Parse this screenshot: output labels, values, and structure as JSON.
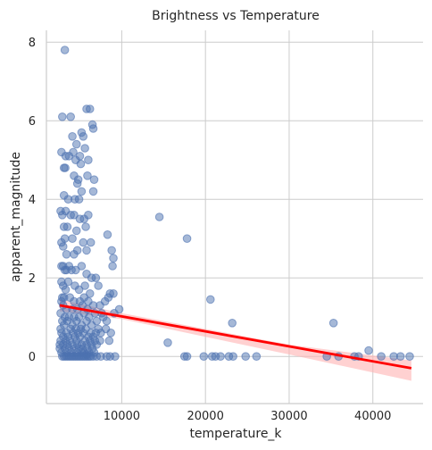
{
  "chart_data": {
    "type": "scatter",
    "title": "Brightness vs Temperature",
    "xlabel": "temperature_k",
    "ylabel": "apparent_magnitude",
    "xlim": [
      1000,
      46000
    ],
    "ylim": [
      -1.2,
      8.3
    ],
    "xticks": [
      10000,
      20000,
      30000,
      40000
    ],
    "xtick_labels": [
      "10000",
      "20000",
      "30000",
      "40000"
    ],
    "yticks": [
      0,
      2,
      4,
      6,
      8
    ],
    "ytick_labels": [
      "0",
      "2",
      "4",
      "6",
      "8"
    ],
    "grid": true,
    "legend": "none",
    "colors": {
      "points": "#4c72b0",
      "regression": "#ff0000",
      "band": "#ffb3b3"
    },
    "series": [
      {
        "kind": "points",
        "points": [
          [
            3200,
            7.8
          ],
          [
            2900,
            6.1
          ],
          [
            3900,
            6.1
          ],
          [
            5800,
            6.3
          ],
          [
            6200,
            6.3
          ],
          [
            6500,
            5.9
          ],
          [
            6600,
            5.8
          ],
          [
            4100,
            5.6
          ],
          [
            4600,
            5.4
          ],
          [
            5200,
            5.7
          ],
          [
            5400,
            5.6
          ],
          [
            2800,
            5.2
          ],
          [
            3300,
            5.1
          ],
          [
            3700,
            5.1
          ],
          [
            4200,
            5.2
          ],
          [
            4500,
            5.0
          ],
          [
            5000,
            5.1
          ],
          [
            5100,
            4.9
          ],
          [
            5600,
            5.3
          ],
          [
            6000,
            5.0
          ],
          [
            3100,
            4.8
          ],
          [
            3250,
            4.8
          ],
          [
            4800,
            4.5
          ],
          [
            4300,
            4.6
          ],
          [
            4700,
            4.4
          ],
          [
            5900,
            4.6
          ],
          [
            6700,
            4.5
          ],
          [
            3100,
            4.1
          ],
          [
            3600,
            4.0
          ],
          [
            4400,
            4.0
          ],
          [
            5200,
            4.2
          ],
          [
            6600,
            4.2
          ],
          [
            4900,
            4.0
          ],
          [
            2700,
            3.7
          ],
          [
            2900,
            3.6
          ],
          [
            3300,
            3.7
          ],
          [
            3900,
            3.6
          ],
          [
            4300,
            3.6
          ],
          [
            5000,
            3.5
          ],
          [
            5500,
            3.5
          ],
          [
            6000,
            3.6
          ],
          [
            3100,
            3.3
          ],
          [
            3500,
            3.3
          ],
          [
            4600,
            3.2
          ],
          [
            5700,
            3.3
          ],
          [
            3200,
            3.0
          ],
          [
            2800,
            2.9
          ],
          [
            3000,
            2.8
          ],
          [
            4100,
            3.0
          ],
          [
            5400,
            2.9
          ],
          [
            6300,
            2.9
          ],
          [
            5800,
            2.7
          ],
          [
            4700,
            2.7
          ],
          [
            3400,
            2.6
          ],
          [
            4300,
            2.6
          ],
          [
            3000,
            2.3
          ],
          [
            3200,
            2.2
          ],
          [
            3400,
            2.2
          ],
          [
            3700,
            2.3
          ],
          [
            4000,
            2.2
          ],
          [
            4500,
            2.2
          ],
          [
            5200,
            2.3
          ],
          [
            5800,
            2.1
          ],
          [
            6400,
            2.0
          ],
          [
            6900,
            2.0
          ],
          [
            2800,
            1.9
          ],
          [
            3600,
            1.9
          ],
          [
            4400,
            1.8
          ],
          [
            5600,
            1.8
          ],
          [
            7200,
            1.8
          ],
          [
            3300,
            1.7
          ],
          [
            4900,
            1.7
          ],
          [
            6200,
            1.6
          ],
          [
            2900,
            1.5
          ],
          [
            3100,
            1.5
          ],
          [
            3800,
            1.5
          ],
          [
            4300,
            1.4
          ],
          [
            5000,
            1.4
          ],
          [
            5500,
            1.5
          ],
          [
            6000,
            1.4
          ],
          [
            6600,
            1.3
          ],
          [
            7400,
            1.3
          ],
          [
            8000,
            1.4
          ],
          [
            3000,
            1.3
          ],
          [
            3400,
            1.2
          ],
          [
            4100,
            1.2
          ],
          [
            4700,
            1.2
          ],
          [
            5300,
            1.3
          ],
          [
            5900,
            1.2
          ],
          [
            6800,
            1.1
          ],
          [
            7600,
            1.1
          ],
          [
            2700,
            1.1
          ],
          [
            3200,
            1.0
          ],
          [
            3700,
            1.0
          ],
          [
            4300,
            1.0
          ],
          [
            4900,
            1.0
          ],
          [
            5500,
            1.1
          ],
          [
            6100,
            1.0
          ],
          [
            7000,
            0.9
          ],
          [
            7800,
            1.0
          ],
          [
            8200,
            0.9
          ],
          [
            2900,
            0.9
          ],
          [
            3500,
            0.9
          ],
          [
            4100,
            0.8
          ],
          [
            4600,
            0.9
          ],
          [
            5200,
            0.8
          ],
          [
            5800,
            0.9
          ],
          [
            6400,
            0.8
          ],
          [
            7200,
            0.7
          ],
          [
            3100,
            0.8
          ],
          [
            3900,
            0.7
          ],
          [
            4500,
            0.7
          ],
          [
            5100,
            0.7
          ],
          [
            5700,
            0.7
          ],
          [
            6300,
            0.6
          ],
          [
            6900,
            0.6
          ],
          [
            7500,
            0.6
          ],
          [
            8100,
            0.7
          ],
          [
            2800,
            0.6
          ],
          [
            3400,
            0.6
          ],
          [
            4200,
            0.6
          ],
          [
            4800,
            0.6
          ],
          [
            5400,
            0.6
          ],
          [
            6000,
            0.5
          ],
          [
            6600,
            0.5
          ],
          [
            3000,
            0.5
          ],
          [
            3600,
            0.5
          ],
          [
            4400,
            0.5
          ],
          [
            5000,
            0.5
          ],
          [
            5600,
            0.4
          ],
          [
            6200,
            0.4
          ],
          [
            6800,
            0.4
          ],
          [
            7400,
            0.4
          ],
          [
            2700,
            0.4
          ],
          [
            3300,
            0.4
          ],
          [
            3800,
            0.4
          ],
          [
            4600,
            0.4
          ],
          [
            5200,
            0.3
          ],
          [
            5800,
            0.3
          ],
          [
            6400,
            0.3
          ],
          [
            7000,
            0.3
          ],
          [
            3000,
            0.3
          ],
          [
            3500,
            0.3
          ],
          [
            4100,
            0.3
          ],
          [
            4700,
            0.3
          ],
          [
            5300,
            0.2
          ],
          [
            5900,
            0.2
          ],
          [
            6500,
            0.2
          ],
          [
            2600,
            0.2
          ],
          [
            3200,
            0.2
          ],
          [
            3700,
            0.2
          ],
          [
            4300,
            0.2
          ],
          [
            4900,
            0.2
          ],
          [
            5500,
            0.1
          ],
          [
            6100,
            0.1
          ],
          [
            6700,
            0.1
          ],
          [
            2800,
            0.1
          ],
          [
            3400,
            0.1
          ],
          [
            4000,
            0.1
          ],
          [
            4600,
            0.1
          ],
          [
            5200,
            0.1
          ],
          [
            5800,
            0.05
          ],
          [
            2900,
            0.0
          ],
          [
            3100,
            0.0
          ],
          [
            3300,
            0.0
          ],
          [
            3500,
            0.0
          ],
          [
            3700,
            0.0
          ],
          [
            3900,
            0.0
          ],
          [
            4100,
            0.0
          ],
          [
            4300,
            0.0
          ],
          [
            4500,
            0.0
          ],
          [
            4700,
            0.0
          ],
          [
            4900,
            0.0
          ],
          [
            5100,
            0.0
          ],
          [
            5300,
            0.0
          ],
          [
            5500,
            0.0
          ],
          [
            5700,
            0.0
          ],
          [
            5900,
            0.0
          ],
          [
            6100,
            0.0
          ],
          [
            6300,
            0.0
          ],
          [
            6600,
            0.0
          ],
          [
            7000,
            0.0
          ],
          [
            7500,
            0.0
          ],
          [
            8200,
            0.0
          ],
          [
            8600,
            0.0
          ],
          [
            9200,
            0.0
          ],
          [
            8300,
            3.1
          ],
          [
            8800,
            2.7
          ],
          [
            9000,
            2.5
          ],
          [
            8900,
            2.3
          ],
          [
            8600,
            1.6
          ],
          [
            9000,
            1.6
          ],
          [
            8400,
            1.5
          ],
          [
            9700,
            1.2
          ],
          [
            9100,
            1.1
          ],
          [
            8700,
            0.6
          ],
          [
            8500,
            0.4
          ],
          [
            2600,
            0.3
          ],
          [
            2700,
            0.7
          ],
          [
            2800,
            1.4
          ],
          [
            3000,
            1.8
          ],
          [
            2800,
            2.3
          ],
          [
            14500,
            3.55
          ],
          [
            17800,
            3.0
          ],
          [
            15500,
            0.35
          ],
          [
            17500,
            0.0
          ],
          [
            17800,
            0.0
          ],
          [
            19800,
            0.0
          ],
          [
            20800,
            0.0
          ],
          [
            21200,
            0.0
          ],
          [
            21800,
            0.0
          ],
          [
            20600,
            1.45
          ],
          [
            23200,
            0.85
          ],
          [
            22800,
            0.0
          ],
          [
            23300,
            0.0
          ],
          [
            24800,
            0.0
          ],
          [
            26100,
            0.0
          ],
          [
            35300,
            0.85
          ],
          [
            34500,
            0.0
          ],
          [
            35900,
            0.0
          ],
          [
            37800,
            0.0
          ],
          [
            38300,
            0.0
          ],
          [
            39500,
            0.15
          ],
          [
            41000,
            0.0
          ],
          [
            42500,
            0.0
          ],
          [
            43300,
            0.0
          ],
          [
            44400,
            0.0
          ]
        ]
      },
      {
        "kind": "regression",
        "line": [
          [
            2600,
            1.3
          ],
          [
            44600,
            -0.3
          ]
        ],
        "band_upper": [
          [
            2600,
            1.45
          ],
          [
            10000,
            1.1
          ],
          [
            20000,
            0.7
          ],
          [
            30000,
            0.3
          ],
          [
            44600,
            -0.1
          ]
        ],
        "band_lower": [
          [
            2600,
            1.15
          ],
          [
            10000,
            0.95
          ],
          [
            20000,
            0.5
          ],
          [
            30000,
            0.05
          ],
          [
            44600,
            -0.62
          ]
        ]
      }
    ]
  }
}
